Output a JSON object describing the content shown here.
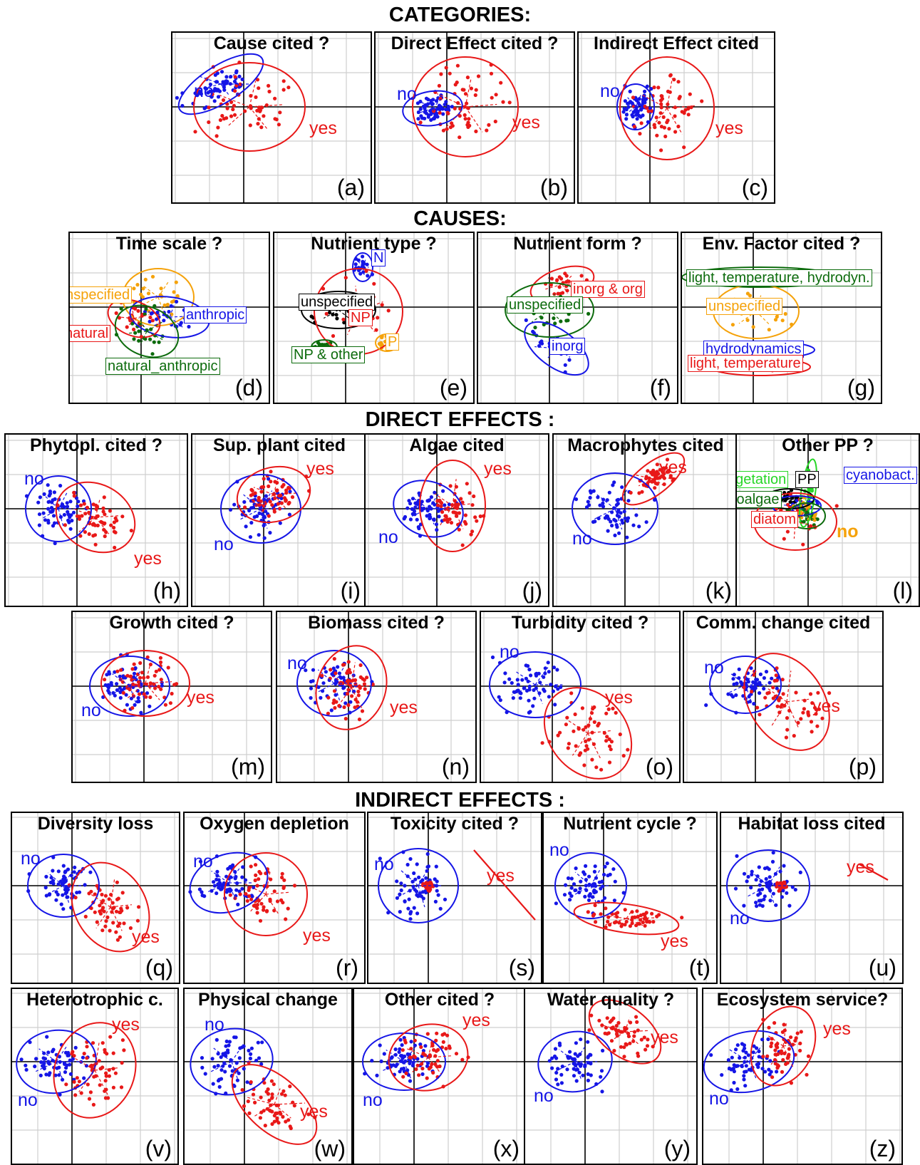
{
  "sections": [
    {
      "title": "CATEGORIES:",
      "top": 0
    },
    {
      "title": "CAUSES:",
      "top": 0
    },
    {
      "title": "DIRECT EFFECTS :",
      "top": 0
    },
    {
      "title": "INDIRECT EFFECTS :",
      "top": 0
    }
  ],
  "colors": {
    "blue": "#1515e6",
    "red": "#e81818",
    "orange": "#f5a20a",
    "darkgreen": "#0c6b0c",
    "green": "#26d626",
    "black": "#000000"
  },
  "chart_data": [
    {
      "type": "scatter",
      "title": "Cause cited ?",
      "panel": "(a)",
      "groups": [
        {
          "label": "no",
          "color": "blue"
        },
        {
          "label": "yes",
          "color": "red"
        }
      ]
    },
    {
      "type": "scatter",
      "title": "Direct Effect cited ?",
      "panel": "(b)",
      "groups": [
        {
          "label": "no",
          "color": "blue"
        },
        {
          "label": "yes",
          "color": "red"
        }
      ]
    },
    {
      "type": "scatter",
      "title": "Indirect Effect cited",
      "panel": "(c)",
      "groups": [
        {
          "label": "no",
          "color": "blue"
        },
        {
          "label": "yes",
          "color": "red"
        }
      ]
    },
    {
      "type": "scatter",
      "title": "Time scale ?",
      "panel": "(d)",
      "groups": [
        {
          "label": "unspecified",
          "color": "orange"
        },
        {
          "label": "anthropic",
          "color": "blue"
        },
        {
          "label": "natural",
          "color": "red"
        },
        {
          "label": "natural_anthropic",
          "color": "darkgreen"
        }
      ]
    },
    {
      "type": "scatter",
      "title": "Nutrient type ?",
      "panel": "(e)",
      "groups": [
        {
          "label": "N",
          "color": "blue"
        },
        {
          "label": "unspecified",
          "color": "black"
        },
        {
          "label": "NP",
          "color": "red"
        },
        {
          "label": "P",
          "color": "orange"
        },
        {
          "label": "NP & other",
          "color": "darkgreen"
        }
      ]
    },
    {
      "type": "scatter",
      "title": "Nutrient form ?",
      "panel": "(f)",
      "groups": [
        {
          "label": "inorg & org",
          "color": "red"
        },
        {
          "label": "unspecified",
          "color": "darkgreen"
        },
        {
          "label": "inorg",
          "color": "blue"
        }
      ]
    },
    {
      "type": "scatter",
      "title": "Env. Factor cited ?",
      "panel": "(g)",
      "groups": [
        {
          "label": "light, temperature, hydrodyn.",
          "color": "darkgreen"
        },
        {
          "label": "unspecified",
          "color": "orange"
        },
        {
          "label": "hydrodynamics",
          "color": "blue"
        },
        {
          "label": "light, temperature",
          "color": "red"
        }
      ]
    },
    {
      "type": "scatter",
      "title": "Phytopl. cited ?",
      "panel": "(h)",
      "groups": [
        {
          "label": "no",
          "color": "blue"
        },
        {
          "label": "yes",
          "color": "red"
        }
      ]
    },
    {
      "type": "scatter",
      "title": "Sup. plant cited",
      "panel": "(i)",
      "groups": [
        {
          "label": "no",
          "color": "blue"
        },
        {
          "label": "yes",
          "color": "red"
        }
      ]
    },
    {
      "type": "scatter",
      "title": "Algae cited",
      "panel": "(j)",
      "groups": [
        {
          "label": "no",
          "color": "blue"
        },
        {
          "label": "yes",
          "color": "red"
        }
      ]
    },
    {
      "type": "scatter",
      "title": "Macrophytes cited",
      "panel": "(k)",
      "groups": [
        {
          "label": "no",
          "color": "blue"
        },
        {
          "label": "yes",
          "color": "red"
        }
      ]
    },
    {
      "type": "scatter",
      "title": "Other PP ?",
      "panel": "(l)",
      "groups": [
        {
          "label": "vegetation",
          "color": "green"
        },
        {
          "label": "PP",
          "color": "black"
        },
        {
          "label": "cyanobact.",
          "color": "blue"
        },
        {
          "label": "macroalgae",
          "color": "darkgreen"
        },
        {
          "label": "diatom",
          "color": "red"
        },
        {
          "label": "no",
          "color": "orange"
        }
      ]
    },
    {
      "type": "scatter",
      "title": "Growth cited ?",
      "panel": "(m)",
      "groups": [
        {
          "label": "no",
          "color": "blue"
        },
        {
          "label": "yes",
          "color": "red"
        }
      ]
    },
    {
      "type": "scatter",
      "title": "Biomass cited ?",
      "panel": "(n)",
      "groups": [
        {
          "label": "no",
          "color": "blue"
        },
        {
          "label": "yes",
          "color": "red"
        }
      ]
    },
    {
      "type": "scatter",
      "title": "Turbidity cited ?",
      "panel": "(o)",
      "groups": [
        {
          "label": "no",
          "color": "blue"
        },
        {
          "label": "yes",
          "color": "red"
        }
      ]
    },
    {
      "type": "scatter",
      "title": "Comm. change cited",
      "panel": "(p)",
      "groups": [
        {
          "label": "no",
          "color": "blue"
        },
        {
          "label": "yes",
          "color": "red"
        }
      ]
    },
    {
      "type": "scatter",
      "title": "Diversity loss",
      "panel": "(q)",
      "groups": [
        {
          "label": "no",
          "color": "blue"
        },
        {
          "label": "yes",
          "color": "red"
        }
      ]
    },
    {
      "type": "scatter",
      "title": "Oxygen depletion",
      "panel": "(r)",
      "groups": [
        {
          "label": "no",
          "color": "blue"
        },
        {
          "label": "yes",
          "color": "red"
        }
      ]
    },
    {
      "type": "scatter",
      "title": "Toxicity cited ?",
      "panel": "(s)",
      "groups": [
        {
          "label": "no",
          "color": "blue"
        },
        {
          "label": "yes",
          "color": "red"
        }
      ]
    },
    {
      "type": "scatter",
      "title": "Nutrient cycle ?",
      "panel": "(t)",
      "groups": [
        {
          "label": "no",
          "color": "blue"
        },
        {
          "label": "yes",
          "color": "red"
        }
      ]
    },
    {
      "type": "scatter",
      "title": "Habitat loss cited",
      "panel": "(u)",
      "groups": [
        {
          "label": "no",
          "color": "blue"
        },
        {
          "label": "yes",
          "color": "red"
        }
      ]
    },
    {
      "type": "scatter",
      "title": "Heterotrophic c.",
      "panel": "(v)",
      "groups": [
        {
          "label": "no",
          "color": "blue"
        },
        {
          "label": "yes",
          "color": "red"
        }
      ]
    },
    {
      "type": "scatter",
      "title": "Physical change",
      "panel": "(w)",
      "groups": [
        {
          "label": "no",
          "color": "blue"
        },
        {
          "label": "yes",
          "color": "red"
        }
      ]
    },
    {
      "type": "scatter",
      "title": "Other cited ?",
      "panel": "(x)",
      "groups": [
        {
          "label": "no",
          "color": "blue"
        },
        {
          "label": "yes",
          "color": "red"
        }
      ]
    },
    {
      "type": "scatter",
      "title": "Water quality ?",
      "panel": "(y)",
      "groups": [
        {
          "label": "no",
          "color": "blue"
        },
        {
          "label": "yes",
          "color": "red"
        }
      ]
    },
    {
      "type": "scatter",
      "title": "Ecosystem service?",
      "panel": "(z)",
      "groups": [
        {
          "label": "no",
          "color": "blue"
        },
        {
          "label": "yes",
          "color": "red"
        }
      ]
    }
  ]
}
